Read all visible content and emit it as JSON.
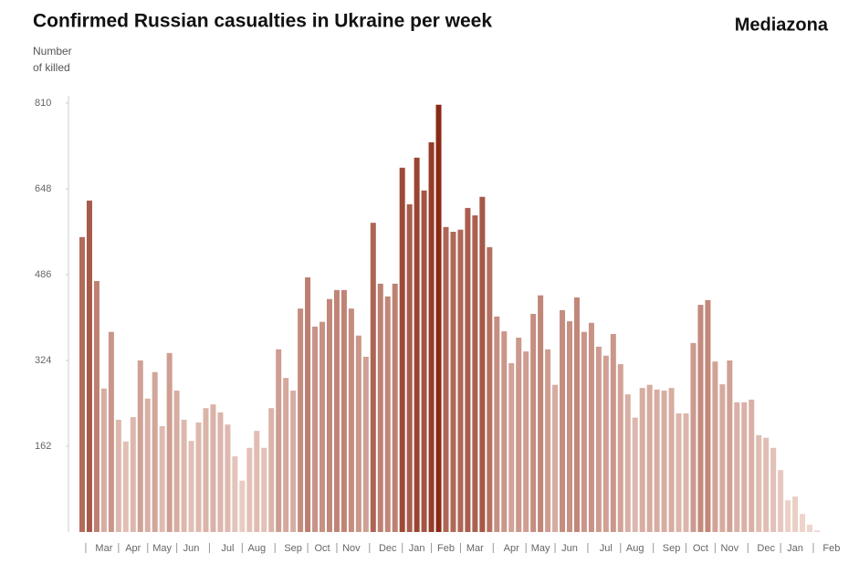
{
  "chart_data": {
    "type": "bar",
    "title": "Confirmed Russian casualties in Ukraine per week",
    "brand": "Mediazona",
    "y_label": [
      "Number",
      "of killed"
    ],
    "ylim": [
      0,
      810
    ],
    "yticks": [
      162,
      324,
      486,
      648,
      810
    ],
    "color_scale": [
      "#efd6ce",
      "#8a2914"
    ],
    "categories": [
      null,
      null,
      null,
      "Mar",
      null,
      null,
      null,
      "Apr",
      null,
      null,
      null,
      "May",
      null,
      null,
      null,
      "Jun",
      null,
      null,
      null,
      null,
      "Jul",
      null,
      null,
      null,
      "Aug",
      null,
      null,
      null,
      null,
      "Sep",
      null,
      null,
      null,
      "Oct",
      null,
      null,
      null,
      "Nov",
      null,
      null,
      null,
      null,
      "Dec",
      null,
      null,
      null,
      "Jan",
      null,
      null,
      null,
      "Feb",
      null,
      null,
      null,
      "Mar",
      null,
      null,
      null,
      null,
      "Apr",
      null,
      null,
      null,
      "May",
      null,
      null,
      null,
      "Jun",
      null,
      null,
      null,
      null,
      "Jul",
      null,
      null,
      null,
      "Aug",
      null,
      null,
      null,
      null,
      "Sep",
      null,
      null,
      null,
      "Oct",
      null,
      null,
      null,
      "Nov",
      null,
      null,
      null,
      null,
      "Dec",
      null,
      null,
      null,
      "Jan",
      null,
      null,
      null,
      null,
      "Feb"
    ],
    "values": [
      557,
      626,
      474,
      271,
      378,
      212,
      171,
      217,
      324,
      252,
      302,
      200,
      338,
      267,
      212,
      172,
      207,
      234,
      241,
      226,
      203,
      143,
      97,
      159,
      191,
      159,
      234,
      345,
      291,
      267,
      422,
      481,
      388,
      397,
      440,
      457,
      457,
      422,
      371,
      331,
      584,
      469,
      445,
      469,
      688,
      619,
      707,
      645,
      736,
      807,
      576,
      567,
      571,
      612,
      598,
      633,
      538,
      407,
      379,
      319,
      367,
      341,
      412,
      447,
      345,
      278,
      419,
      398,
      443,
      378,
      395,
      350,
      333,
      374,
      317,
      260,
      216,
      272,
      278,
      269,
      267,
      272,
      224,
      224,
      357,
      429,
      438,
      322,
      279,
      324,
      245,
      245,
      250,
      183,
      178,
      159,
      117,
      60,
      67,
      34,
      14,
      3,
      null,
      null
    ]
  }
}
